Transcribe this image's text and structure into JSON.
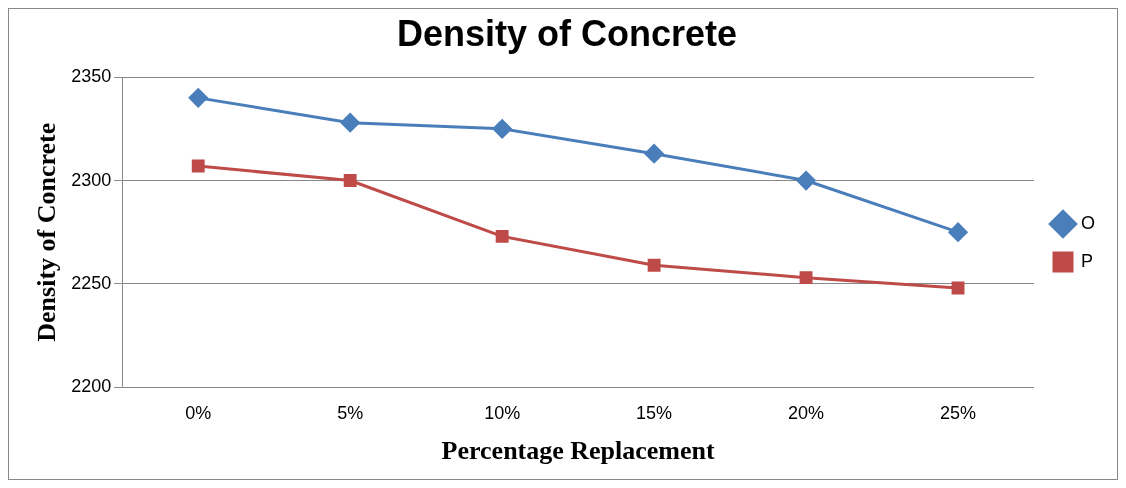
{
  "chart_data": {
    "type": "line",
    "title": "Density of Concrete",
    "xlabel": "Percentage Replacement",
    "ylabel": "Density of Concrete",
    "categories": [
      "0%",
      "5%",
      "10%",
      "15%",
      "20%",
      "25%"
    ],
    "series": [
      {
        "name": "O",
        "color": "#4a7ebb",
        "marker": "diamond",
        "values": [
          2340,
          2328,
          2325,
          2313,
          2300,
          2275
        ]
      },
      {
        "name": "P",
        "color": "#be4b48",
        "marker": "square",
        "values": [
          2307,
          2300,
          2273,
          2259,
          2253,
          2248
        ]
      }
    ],
    "ylim": [
      2200,
      2350
    ],
    "yticks": [
      2200,
      2250,
      2300,
      2350
    ],
    "grid": "y",
    "legend": "right",
    "line_style": "solid"
  }
}
